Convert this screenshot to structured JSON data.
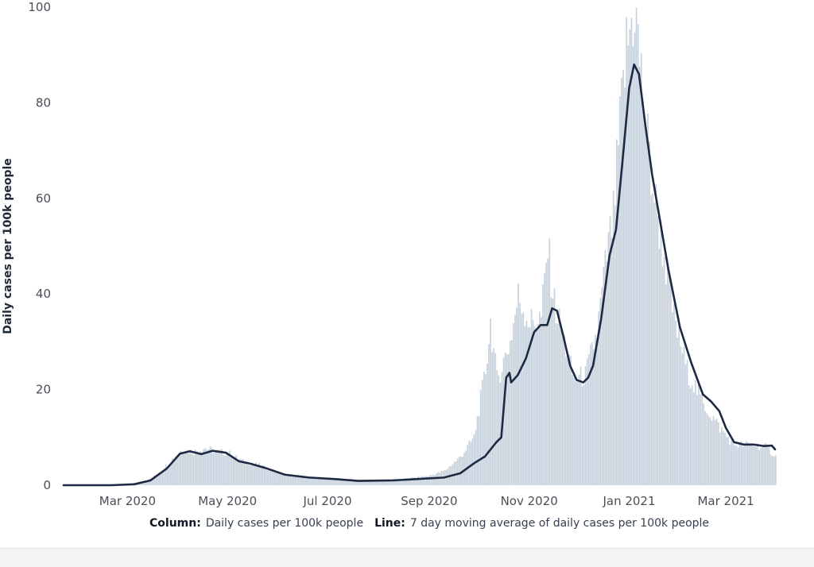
{
  "chart_data": {
    "type": "bar",
    "ylabel": "Daily cases per 100k people",
    "ylim": [
      0,
      100
    ],
    "yticks": [
      0,
      20,
      40,
      60,
      80,
      100
    ],
    "x_ticks": [
      "Mar 2020",
      "May 2020",
      "Jul 2020",
      "Sep 2020",
      "Nov 2020",
      "Jan 2021",
      "Mar 2021"
    ],
    "x_tick_dates": [
      "2020-03-01",
      "2020-05-01",
      "2020-07-01",
      "2020-09-01",
      "2020-11-01",
      "2021-01-01",
      "2021-03-01"
    ],
    "x_range": [
      "2020-01-22",
      "2021-03-31"
    ],
    "bar_color": "#c9d3de",
    "line_color": "#1e2a44",
    "series": [
      {
        "name": "Daily cases per 100k people",
        "kind": "column",
        "points": [
          [
            "2020-01-22",
            0
          ],
          [
            "2020-02-15",
            0
          ],
          [
            "2020-03-01",
            0
          ],
          [
            "2020-03-10",
            0.4
          ],
          [
            "2020-03-20",
            2.5
          ],
          [
            "2020-03-28",
            5.5
          ],
          [
            "2020-04-03",
            7.5
          ],
          [
            "2020-04-10",
            7.0
          ],
          [
            "2020-04-17",
            7.8
          ],
          [
            "2020-04-24",
            7.0
          ],
          [
            "2020-05-01",
            6.8
          ],
          [
            "2020-05-10",
            5.0
          ],
          [
            "2020-05-20",
            4.2
          ],
          [
            "2020-06-01",
            2.5
          ],
          [
            "2020-06-15",
            1.8
          ],
          [
            "2020-07-01",
            1.4
          ],
          [
            "2020-07-15",
            1.0
          ],
          [
            "2020-08-01",
            1.0
          ],
          [
            "2020-08-15",
            1.2
          ],
          [
            "2020-09-01",
            2.0
          ],
          [
            "2020-09-10",
            3.0
          ],
          [
            "2020-09-20",
            6.0
          ],
          [
            "2020-09-28",
            10.0
          ],
          [
            "2020-10-05",
            24.0
          ],
          [
            "2020-10-08",
            34.0
          ],
          [
            "2020-10-12",
            22.0
          ],
          [
            "2020-10-20",
            30.0
          ],
          [
            "2020-10-25",
            39.5
          ],
          [
            "2020-11-01",
            34.0
          ],
          [
            "2020-11-08",
            35.0
          ],
          [
            "2020-11-12",
            49.5
          ],
          [
            "2020-11-16",
            38.0
          ],
          [
            "2020-11-22",
            30.0
          ],
          [
            "2020-11-28",
            22.0
          ],
          [
            "2020-12-05",
            23.0
          ],
          [
            "2020-12-12",
            32.0
          ],
          [
            "2020-12-18",
            48.0
          ],
          [
            "2020-12-22",
            56.0
          ],
          [
            "2020-12-26",
            75.0
          ],
          [
            "2020-12-30",
            91.0
          ],
          [
            "2021-01-04",
            100.5
          ],
          [
            "2021-01-08",
            85.0
          ],
          [
            "2021-01-14",
            65.0
          ],
          [
            "2021-01-20",
            52.0
          ],
          [
            "2021-01-28",
            35.0
          ],
          [
            "2021-02-05",
            24.0
          ],
          [
            "2021-02-15",
            17.0
          ],
          [
            "2021-02-25",
            12.0
          ],
          [
            "2021-03-05",
            8.5
          ],
          [
            "2021-03-15",
            8.5
          ],
          [
            "2021-03-25",
            8.0
          ],
          [
            "2021-03-31",
            6.0
          ]
        ]
      },
      {
        "name": "7 day moving average of daily cases per 100k people",
        "kind": "line",
        "points": [
          [
            "2020-01-22",
            0
          ],
          [
            "2020-02-20",
            0
          ],
          [
            "2020-03-05",
            0.2
          ],
          [
            "2020-03-15",
            1.0
          ],
          [
            "2020-03-25",
            3.5
          ],
          [
            "2020-04-02",
            6.6
          ],
          [
            "2020-04-08",
            7.1
          ],
          [
            "2020-04-15",
            6.5
          ],
          [
            "2020-04-22",
            7.2
          ],
          [
            "2020-04-30",
            6.8
          ],
          [
            "2020-05-08",
            5.0
          ],
          [
            "2020-05-15",
            4.5
          ],
          [
            "2020-05-25",
            3.5
          ],
          [
            "2020-06-05",
            2.2
          ],
          [
            "2020-06-20",
            1.6
          ],
          [
            "2020-07-05",
            1.3
          ],
          [
            "2020-07-20",
            0.9
          ],
          [
            "2020-08-10",
            1.0
          ],
          [
            "2020-08-25",
            1.3
          ],
          [
            "2020-09-10",
            1.6
          ],
          [
            "2020-09-20",
            2.5
          ],
          [
            "2020-09-28",
            4.5
          ],
          [
            "2020-10-05",
            6.0
          ],
          [
            "2020-10-12",
            9.0
          ],
          [
            "2020-10-15",
            10.0
          ],
          [
            "2020-10-18",
            22.5
          ],
          [
            "2020-10-20",
            23.5
          ],
          [
            "2020-10-21",
            21.5
          ],
          [
            "2020-10-25",
            23.0
          ],
          [
            "2020-10-30",
            26.5
          ],
          [
            "2020-11-04",
            32.0
          ],
          [
            "2020-11-08",
            33.5
          ],
          [
            "2020-11-12",
            33.5
          ],
          [
            "2020-11-15",
            37.0
          ],
          [
            "2020-11-18",
            36.5
          ],
          [
            "2020-11-22",
            31.0
          ],
          [
            "2020-11-26",
            25.0
          ],
          [
            "2020-11-30",
            22.0
          ],
          [
            "2020-12-04",
            21.5
          ],
          [
            "2020-12-07",
            22.5
          ],
          [
            "2020-12-10",
            25.0
          ],
          [
            "2020-12-15",
            35.0
          ],
          [
            "2020-12-20",
            48.0
          ],
          [
            "2020-12-24",
            53.5
          ],
          [
            "2020-12-28",
            68.0
          ],
          [
            "2021-01-01",
            83.0
          ],
          [
            "2021-01-04",
            88.0
          ],
          [
            "2021-01-07",
            86.0
          ],
          [
            "2021-01-11",
            75.0
          ],
          [
            "2021-01-15",
            65.0
          ],
          [
            "2021-01-20",
            55.0
          ],
          [
            "2021-01-25",
            45.0
          ],
          [
            "2021-02-01",
            33.0
          ],
          [
            "2021-02-08",
            25.5
          ],
          [
            "2021-02-15",
            19.0
          ],
          [
            "2021-02-20",
            17.5
          ],
          [
            "2021-02-25",
            15.5
          ],
          [
            "2021-03-01",
            12.0
          ],
          [
            "2021-03-06",
            9.0
          ],
          [
            "2021-03-12",
            8.5
          ],
          [
            "2021-03-18",
            8.5
          ],
          [
            "2021-03-24",
            8.2
          ],
          [
            "2021-03-29",
            8.3
          ],
          [
            "2021-03-31",
            7.5
          ]
        ]
      }
    ]
  },
  "legend": {
    "column_label": "Column:",
    "column_text": "Daily cases per 100k people",
    "line_label": "Line:",
    "line_text": "7 day moving average of daily cases per 100k people"
  }
}
